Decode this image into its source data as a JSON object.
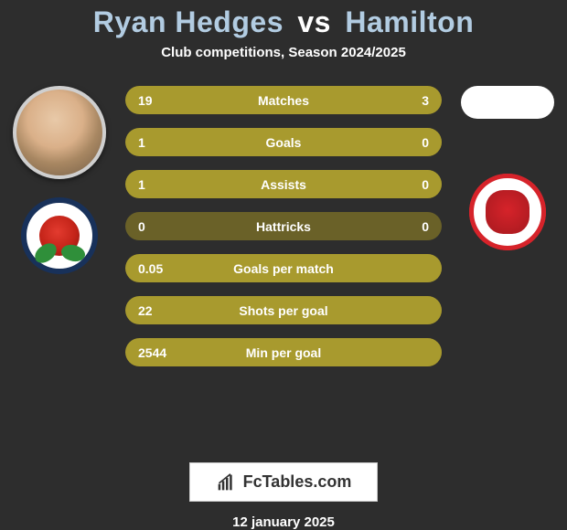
{
  "colors": {
    "background": "#2d2d2d",
    "bar_base": "#6a6128",
    "bar_left": "#a89a2e",
    "bar_right": "#a89a2e",
    "text": "#ffffff",
    "title_player": "#b2cce2"
  },
  "header": {
    "player1": "Ryan Hedges",
    "vs": "vs",
    "player2": "Hamilton",
    "subtitle": "Club competitions, Season 2024/2025"
  },
  "stats": [
    {
      "label": "Matches",
      "left_val": "19",
      "right_val": "3",
      "left_pct": 86,
      "right_pct": 14
    },
    {
      "label": "Goals",
      "left_val": "1",
      "right_val": "0",
      "left_pct": 100,
      "right_pct": 0
    },
    {
      "label": "Assists",
      "left_val": "1",
      "right_val": "0",
      "left_pct": 100,
      "right_pct": 0
    },
    {
      "label": "Hattricks",
      "left_val": "0",
      "right_val": "0",
      "left_pct": 0,
      "right_pct": 0
    },
    {
      "label": "Goals per match",
      "left_val": "0.05",
      "right_val": "",
      "left_pct": 100,
      "right_pct": 0
    },
    {
      "label": "Shots per goal",
      "left_val": "22",
      "right_val": "",
      "left_pct": 100,
      "right_pct": 0
    },
    {
      "label": "Min per goal",
      "left_val": "2544",
      "right_val": "",
      "left_pct": 100,
      "right_pct": 0
    }
  ],
  "branding": {
    "label": "FcTables.com"
  },
  "footer": {
    "date": "12 january 2025"
  }
}
